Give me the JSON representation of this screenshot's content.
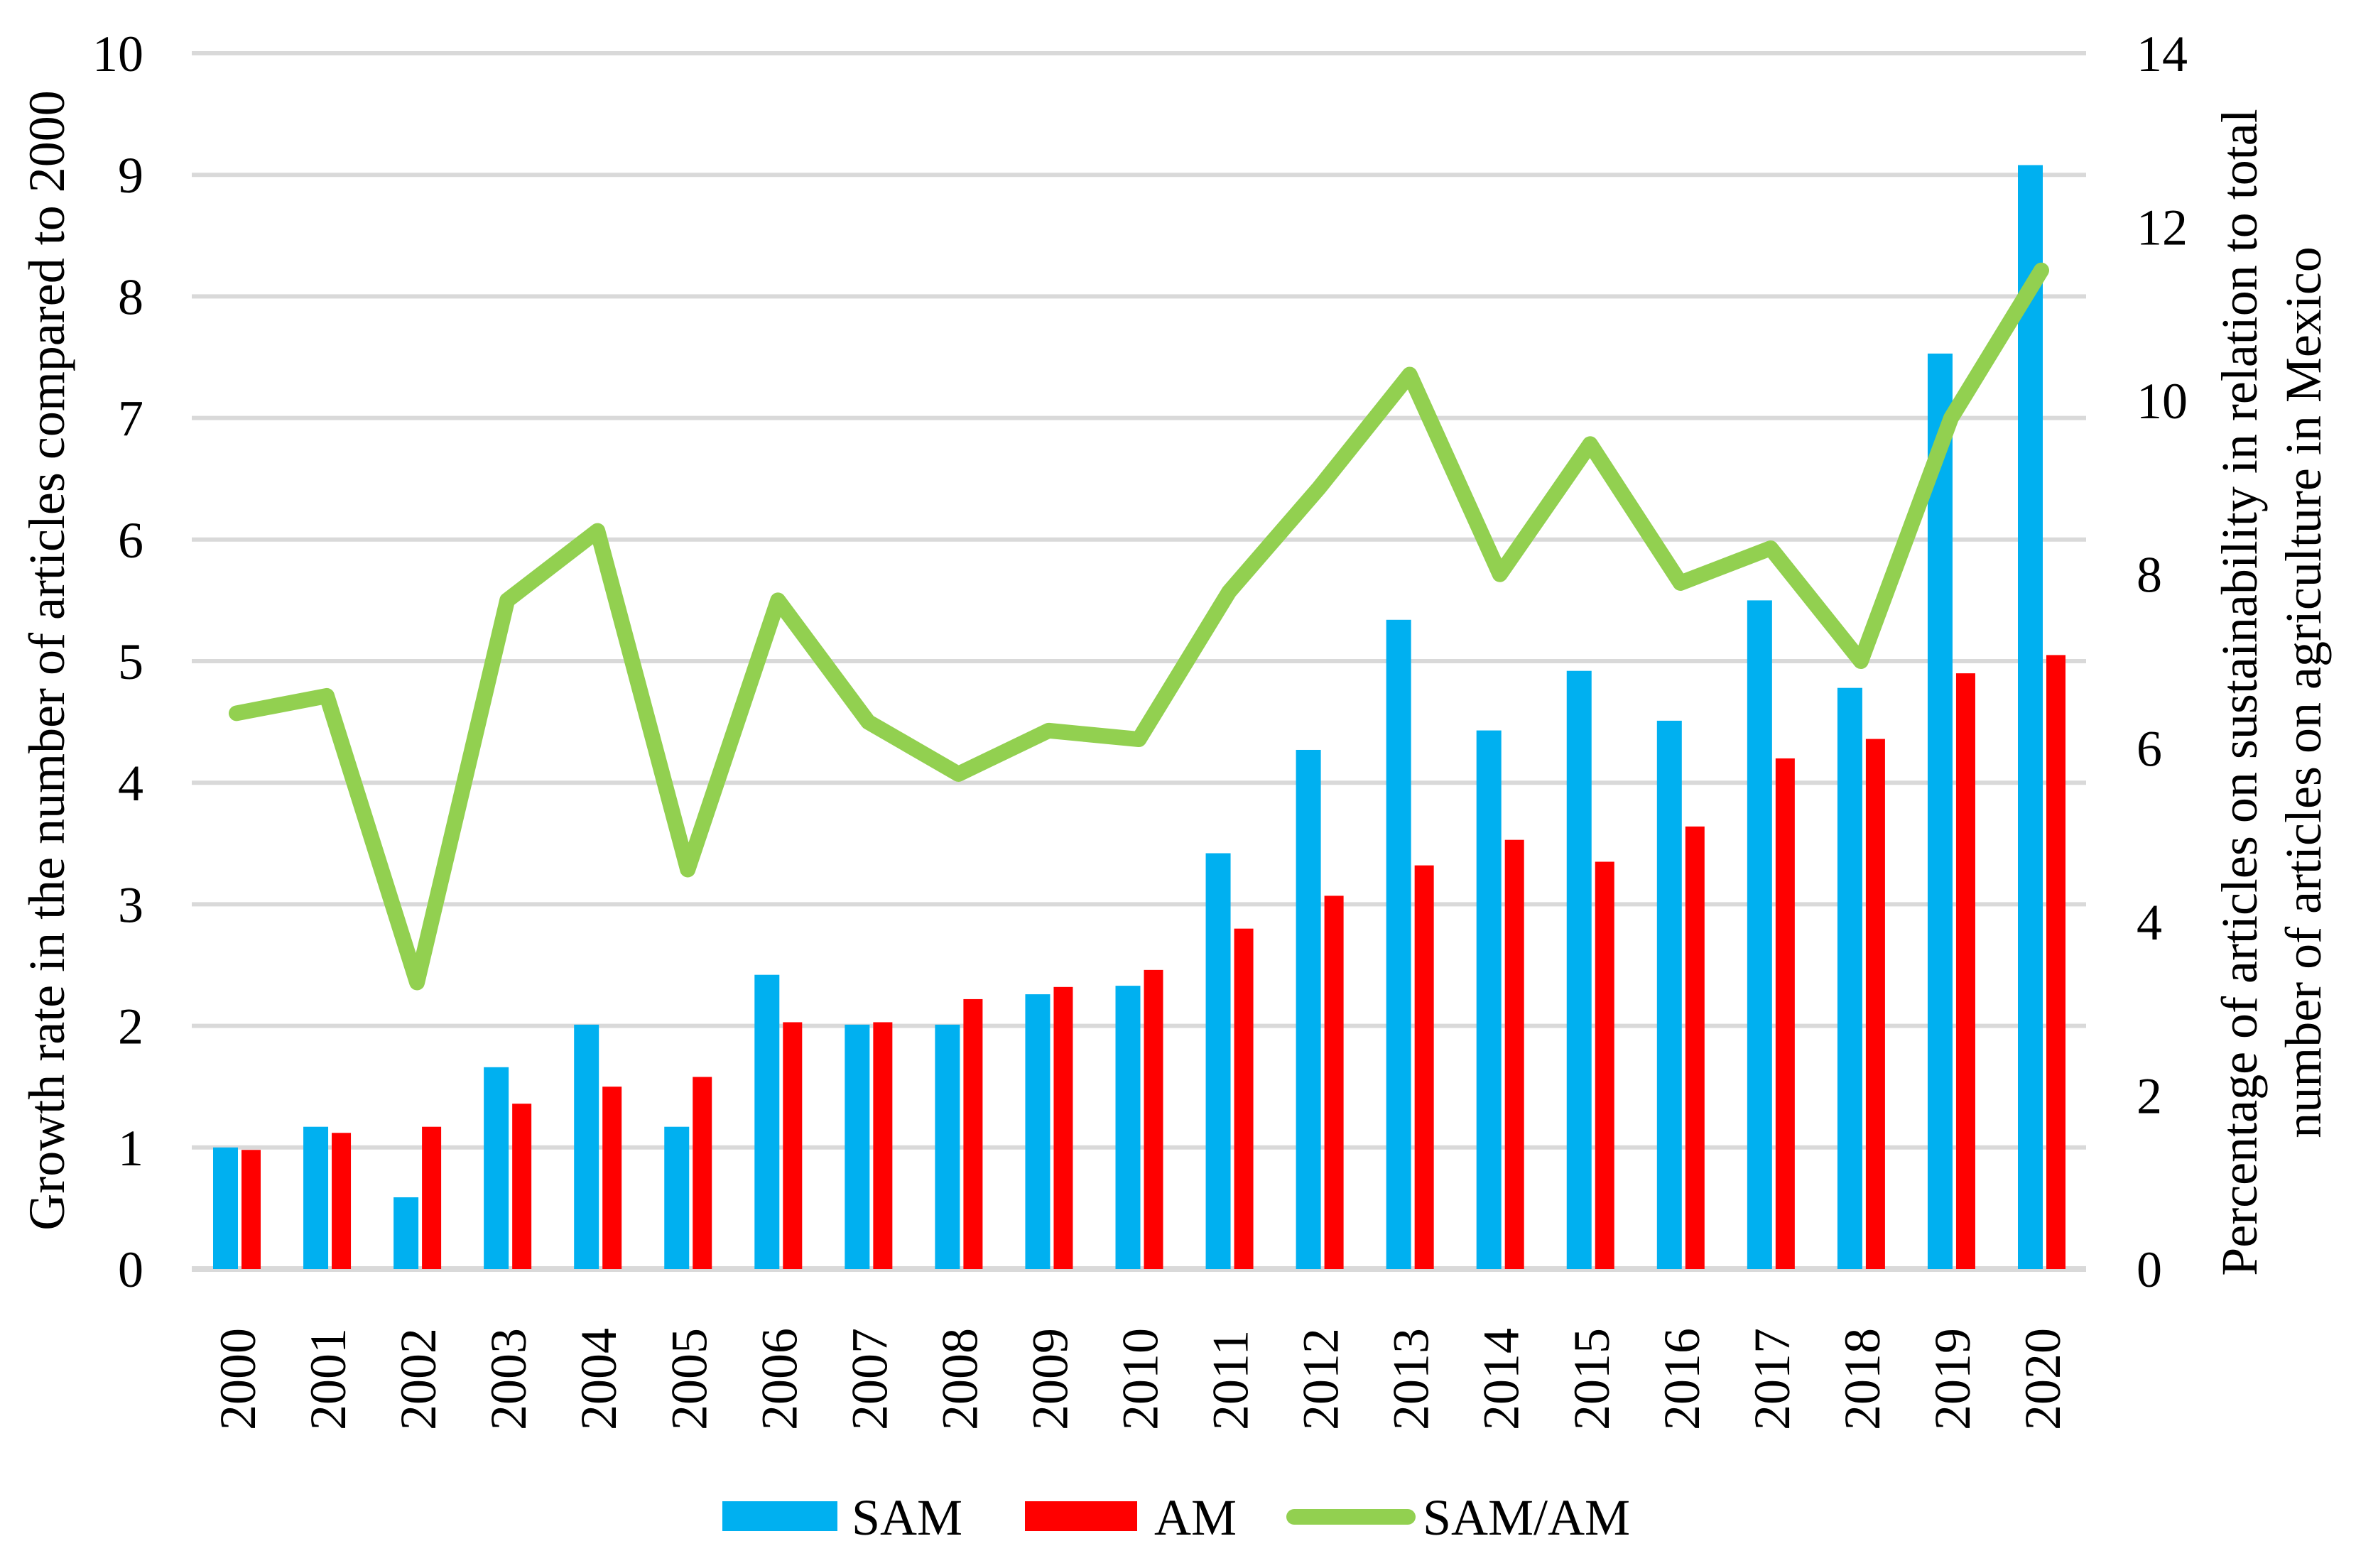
{
  "chart_data": {
    "type": "bar+line",
    "categories": [
      "2000",
      "2001",
      "2002",
      "2003",
      "2004",
      "2005",
      "2006",
      "2007",
      "2008",
      "2009",
      "2010",
      "2011",
      "2012",
      "2013",
      "2014",
      "2015",
      "2016",
      "2017",
      "2018",
      "2019",
      "2020"
    ],
    "series": [
      {
        "name": "SAM",
        "type": "bar",
        "axis": "left",
        "color": "#00B0F0",
        "values": [
          1.0,
          1.17,
          0.59,
          1.66,
          2.01,
          1.17,
          2.42,
          2.01,
          2.01,
          2.26,
          2.33,
          3.42,
          4.27,
          5.34,
          4.43,
          4.92,
          4.51,
          5.5,
          4.78,
          7.53,
          9.08
        ]
      },
      {
        "name": "AM",
        "type": "bar",
        "axis": "left",
        "color": "#FF0000",
        "values": [
          0.98,
          1.12,
          1.17,
          1.36,
          1.5,
          1.58,
          2.03,
          2.03,
          2.22,
          2.32,
          2.46,
          2.8,
          3.07,
          3.32,
          3.53,
          3.35,
          3.64,
          4.2,
          4.36,
          4.9,
          5.05
        ]
      },
      {
        "name": "SAM/AM",
        "type": "line",
        "axis": "right",
        "color": "#92D050",
        "values": [
          6.4,
          6.6,
          3.3,
          7.7,
          8.5,
          4.6,
          7.7,
          6.3,
          5.7,
          6.2,
          6.1,
          7.8,
          9.0,
          10.3,
          8.0,
          9.5,
          7.9,
          8.3,
          7.0,
          9.8,
          11.5
        ]
      }
    ],
    "left_axis": {
      "label": "Growth rate in the number of articles compared to 2000",
      "min": 0,
      "max": 10,
      "step": 1,
      "ticks": [
        "0",
        "1",
        "2",
        "3",
        "4",
        "5",
        "6",
        "7",
        "8",
        "9",
        "10"
      ]
    },
    "right_axis": {
      "label_lines": [
        "Percentage of articles on sustainability in relation to total",
        "number of articles on agriculture in Mexico"
      ],
      "min": 0,
      "max": 14,
      "step": 2,
      "ticks": [
        "0",
        "2",
        "4",
        "6",
        "8",
        "10",
        "12",
        "14"
      ]
    },
    "grid": true,
    "legend_position": "bottom",
    "legend": [
      {
        "label": "SAM",
        "key": "bar-swatch",
        "color": "#00B0F0"
      },
      {
        "label": "AM",
        "key": "bar-swatch",
        "color": "#FF0000"
      },
      {
        "label": "SAM/AM",
        "key": "line-swatch",
        "color": "#92D050"
      }
    ],
    "colors": {
      "gridline": "#D9D9D9",
      "axis_line": "#D9D9D9",
      "text": "#000000"
    }
  }
}
